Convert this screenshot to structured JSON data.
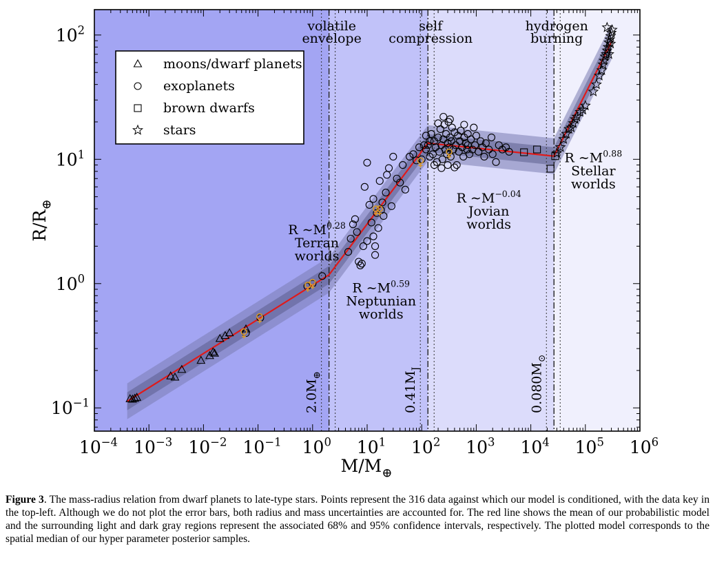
{
  "chart_data": {
    "type": "scatter",
    "xscale": "log",
    "yscale": "log",
    "xlim": [
      0.0001,
      1000000
    ],
    "ylim": [
      0.065,
      160
    ],
    "xlabel": "M/M",
    "xlabel_sub": "⊕",
    "ylabel": "R/R",
    "ylabel_sub": "⊕",
    "x_ticks": [
      {
        "value": 0.0001,
        "base": "10",
        "exp": "−4"
      },
      {
        "value": 0.001,
        "base": "10",
        "exp": "−3"
      },
      {
        "value": 0.01,
        "base": "10",
        "exp": "−2"
      },
      {
        "value": 0.1,
        "base": "10",
        "exp": "−1"
      },
      {
        "value": 1,
        "base": "10",
        "exp": "0"
      },
      {
        "value": 10,
        "base": "10",
        "exp": "1"
      },
      {
        "value": 100,
        "base": "10",
        "exp": "2"
      },
      {
        "value": 1000,
        "base": "10",
        "exp": "3"
      },
      {
        "value": 10000,
        "base": "10",
        "exp": "4"
      },
      {
        "value": 100000,
        "base": "10",
        "exp": "5"
      },
      {
        "value": 1000000,
        "base": "10",
        "exp": "6"
      }
    ],
    "y_ticks": [
      {
        "value": 0.1,
        "base": "10",
        "exp": "−1"
      },
      {
        "value": 1,
        "base": "10",
        "exp": "0"
      },
      {
        "value": 10,
        "base": "10",
        "exp": "1"
      },
      {
        "value": 100,
        "base": "10",
        "exp": "2"
      }
    ],
    "regions": [
      {
        "x0": 0.0001,
        "x1": 2.0,
        "color": "#a3a5f3"
      },
      {
        "x0": 2.0,
        "x1": 130,
        "color": "#c1c2f9"
      },
      {
        "x0": 130,
        "x1": 26600,
        "color": "#dcdcfb"
      },
      {
        "x0": 26600,
        "x1": 1000000,
        "color": "#f0f0fd"
      }
    ],
    "transitions": [
      {
        "x": 2.0,
        "label": "2.0M",
        "label_sub": "⊕"
      },
      {
        "x": 130,
        "label": "0.41M",
        "label_sub": "J"
      },
      {
        "x": 26600,
        "label": "0.080M",
        "label_sub": "⊙"
      }
    ],
    "transition_titles": [
      {
        "x": 2.0,
        "line1": "volatile",
        "line2": "envelope"
      },
      {
        "x": 130,
        "line1": "self",
        "line2": "compression"
      },
      {
        "x": 26600,
        "line1": "hydrogen",
        "line2": "burning"
      }
    ],
    "region_labels": [
      {
        "x": 1.2,
        "y": 2.5,
        "law": "R ∼M",
        "exp": "0.28",
        "name": "Terran",
        "name2": "worlds"
      },
      {
        "x": 18,
        "y": 0.85,
        "law": "R ∼M",
        "exp": "0.59",
        "name": "Neptunian",
        "name2": "worlds"
      },
      {
        "x": 1700,
        "y": 4.5,
        "law": "R ∼M",
        "exp": "−0.04",
        "name": "Jovian",
        "name2": "worlds"
      },
      {
        "x": 140000,
        "y": 9.5,
        "law": "R ∼M",
        "exp": "0.88",
        "name": "Stellar",
        "name2": "worlds"
      }
    ],
    "model_line": [
      [
        0.0004,
        0.113
      ],
      [
        2.0,
        1.176
      ],
      [
        130,
        13.5
      ],
      [
        26600,
        10.6
      ],
      [
        300000,
        88
      ]
    ],
    "legend": {
      "position": "top-left",
      "entries": [
        {
          "marker": "triangle",
          "label": "moons/dwarf planets"
        },
        {
          "marker": "circle",
          "label": "exoplanets"
        },
        {
          "marker": "square",
          "label": "brown dwarfs"
        },
        {
          "marker": "star",
          "label": "stars"
        }
      ]
    },
    "series": [
      {
        "marker": "triangle",
        "points": [
          [
            0.00045,
            0.118
          ],
          [
            0.0005,
            0.117
          ],
          [
            0.00055,
            0.119
          ],
          [
            0.0006,
            0.121
          ],
          [
            0.0025,
            0.18
          ],
          [
            0.003,
            0.176
          ],
          [
            0.004,
            0.203
          ],
          [
            0.009,
            0.24
          ],
          [
            0.013,
            0.262
          ],
          [
            0.016,
            0.274
          ],
          [
            0.02,
            0.36
          ],
          [
            0.025,
            0.38
          ],
          [
            0.03,
            0.4
          ],
          [
            0.06,
            0.43
          ],
          [
            0.015,
            0.28
          ]
        ]
      },
      {
        "marker": "circle",
        "points": [
          [
            0.06,
            0.4
          ],
          [
            0.11,
            0.53
          ],
          [
            0.8,
            0.95
          ],
          [
            1.0,
            1.0
          ],
          [
            1.5,
            1.15
          ],
          [
            4.5,
            1.8
          ],
          [
            5,
            2.3
          ],
          [
            5.5,
            3.0
          ],
          [
            6,
            3.3
          ],
          [
            6.5,
            2.6
          ],
          [
            7,
            1.5
          ],
          [
            7.5,
            1.4
          ],
          [
            8,
            1.45
          ],
          [
            8.5,
            2.0
          ],
          [
            9,
            6.0
          ],
          [
            10,
            2.2
          ],
          [
            10,
            9.4
          ],
          [
            11,
            4.3
          ],
          [
            12,
            3.1
          ],
          [
            13,
            2.4
          ],
          [
            13,
            4.8
          ],
          [
            14,
            1.7
          ],
          [
            14,
            2.0
          ],
          [
            15,
            3.7
          ],
          [
            16,
            2.8
          ],
          [
            17,
            6.7
          ],
          [
            18,
            3.9
          ],
          [
            19,
            4.5
          ],
          [
            20,
            3.5
          ],
          [
            22,
            5.4
          ],
          [
            23,
            7.5
          ],
          [
            25,
            8.5
          ],
          [
            28,
            4.2
          ],
          [
            30,
            10.5
          ],
          [
            35,
            7.0
          ],
          [
            40,
            6.5
          ],
          [
            45,
            9.0
          ],
          [
            50,
            5.7
          ],
          [
            60,
            10.5
          ],
          [
            70,
            11.0
          ],
          [
            80,
            9.8
          ],
          [
            90,
            12.5
          ],
          [
            100,
            10.0
          ],
          [
            110,
            13.0
          ],
          [
            120,
            12.0
          ],
          [
            130,
            13.0
          ],
          [
            140,
            10.5
          ],
          [
            150,
            16.0
          ],
          [
            160,
            11.0
          ],
          [
            170,
            14.0
          ],
          [
            180,
            12.5
          ],
          [
            190,
            9.5
          ],
          [
            200,
            15.0
          ],
          [
            210,
            11.5
          ],
          [
            220,
            17.5
          ],
          [
            230,
            13.0
          ],
          [
            240,
            10.0
          ],
          [
            250,
            14.5
          ],
          [
            260,
            19.0
          ],
          [
            270,
            12.0
          ],
          [
            280,
            16.0
          ],
          [
            290,
            11.0
          ],
          [
            300,
            13.5
          ],
          [
            310,
            20.0
          ],
          [
            320,
            12.5
          ],
          [
            330,
            15.0
          ],
          [
            340,
            10.5
          ],
          [
            350,
            14.0
          ],
          [
            360,
            18.0
          ],
          [
            380,
            12.0
          ],
          [
            400,
            16.5
          ],
          [
            420,
            13.0
          ],
          [
            440,
            9.0
          ],
          [
            460,
            15.5
          ],
          [
            480,
            11.5
          ],
          [
            500,
            14.0
          ],
          [
            520,
            17.0
          ],
          [
            550,
            12.5
          ],
          [
            580,
            10.5
          ],
          [
            600,
            15.0
          ],
          [
            640,
            13.5
          ],
          [
            680,
            12.0
          ],
          [
            700,
            16.0
          ],
          [
            750,
            11.0
          ],
          [
            800,
            14.5
          ],
          [
            850,
            12.0
          ],
          [
            900,
            18.0
          ],
          [
            950,
            13.0
          ],
          [
            1000,
            15.5
          ],
          [
            1100,
            11.5
          ],
          [
            1200,
            14.0
          ],
          [
            1300,
            12.5
          ],
          [
            1400,
            10.5
          ],
          [
            1500,
            13.5
          ],
          [
            1700,
            12.0
          ],
          [
            1900,
            15.0
          ],
          [
            2000,
            11.0
          ],
          [
            2300,
            9.5
          ],
          [
            2600,
            13.0
          ],
          [
            3000,
            12.0
          ],
          [
            3500,
            12.5
          ],
          [
            4000,
            11.5
          ],
          [
            170,
            9.0
          ],
          [
            230,
            8.5
          ],
          [
            300,
            9.0
          ],
          [
            400,
            8.6
          ],
          [
            120,
            15.5
          ],
          [
            250,
            22.0
          ],
          [
            330,
            21.0
          ],
          [
            600,
            19.0
          ],
          [
            200,
            19.5
          ],
          [
            140,
            14.0
          ],
          [
            700,
            13.0
          ]
        ]
      },
      {
        "marker": "square",
        "points": [
          [
            7500,
            11.4
          ],
          [
            13000,
            12.0
          ],
          [
            23000,
            8.4
          ],
          [
            28000,
            10.6
          ]
        ]
      },
      {
        "marker": "star",
        "points": [
          [
            30000,
            11.2
          ],
          [
            35000,
            12.5
          ],
          [
            40000,
            14.5
          ],
          [
            45000,
            16.0
          ],
          [
            50000,
            17.5
          ],
          [
            55000,
            18.0
          ],
          [
            60000,
            19.5
          ],
          [
            65000,
            21.0
          ],
          [
            70000,
            22.0
          ],
          [
            80000,
            24.0
          ],
          [
            90000,
            25.0
          ],
          [
            100000,
            27.0
          ],
          [
            140000,
            35.0
          ],
          [
            160000,
            40.0
          ],
          [
            180000,
            47.0
          ],
          [
            200000,
            52.0
          ],
          [
            210000,
            58.0
          ],
          [
            220000,
            62.0
          ],
          [
            230000,
            67.0
          ],
          [
            240000,
            70.0
          ],
          [
            250000,
            75.0
          ],
          [
            260000,
            80.0
          ],
          [
            270000,
            87.0
          ],
          [
            280000,
            92.0
          ],
          [
            290000,
            98.0
          ],
          [
            300000,
            104.0
          ],
          [
            310000,
            110.0
          ],
          [
            250000,
            115.0
          ],
          [
            290000,
            85.0
          ],
          [
            270000,
            70.0
          ]
        ]
      },
      {
        "marker": "solar-symbol",
        "color": "#d99a2b",
        "points": [
          [
            0.055,
            0.4
          ],
          [
            0.107,
            0.53
          ],
          [
            0.815,
            0.95
          ],
          [
            1.0,
            1.0
          ],
          [
            14.5,
            3.9
          ],
          [
            17,
            3.9
          ],
          [
            95,
            9.5
          ],
          [
            318,
            11.2
          ]
        ]
      }
    ]
  },
  "caption": {
    "label": "Figure 3",
    "text": ".  The mass-radius relation from dwarf planets to late-type stars. Points represent the 316 data against which our model is conditioned, with the data key in the top-left. Although we do not plot the error bars, both radius and mass uncertainties are accounted for. The red line shows the mean of our probabilistic model and the surrounding light and dark gray regions represent the associated 68% and 95% confidence intervals, respectively. The plotted model corresponds to the spatial median of our hyper parameter posterior samples."
  }
}
